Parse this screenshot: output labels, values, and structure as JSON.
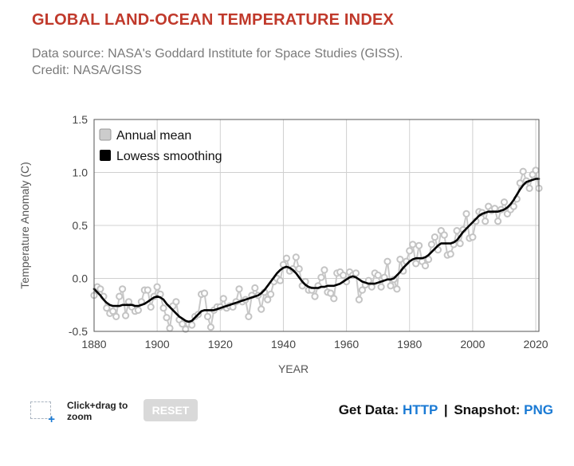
{
  "title": "GLOBAL LAND-OCEAN TEMPERATURE INDEX",
  "subtitle": "Data source: NASA's Goddard Institute for Space Studies (GISS). Credit: NASA/GISS",
  "controls": {
    "zoom_hint": "Click+drag to zoom",
    "reset_label": "RESET",
    "get_data_label": "Get Data:",
    "http_link": "HTTP",
    "separator": "|",
    "snapshot_label": "Snapshot:",
    "png_link": "PNG"
  },
  "colors": {
    "title": "#c0392b",
    "annual_mean": "#c8c8c8",
    "lowess": "#000000",
    "link": "#1a7ad4"
  },
  "chart_data": {
    "type": "line",
    "title": "GLOBAL LAND-OCEAN TEMPERATURE INDEX",
    "xlabel": "YEAR",
    "ylabel": "Temperature Anomaly (C)",
    "xlim": [
      1880,
      2021
    ],
    "ylim": [
      -0.5,
      1.5
    ],
    "xticks": [
      1880,
      1900,
      1920,
      1940,
      1960,
      1980,
      2000,
      2020
    ],
    "yticks": [
      -0.5,
      0.0,
      0.5,
      1.0,
      1.5
    ],
    "ytick_labels": [
      "-0.5",
      "0.0",
      "0.5",
      "1.0",
      "1.5"
    ],
    "grid": true,
    "legend": {
      "placement": "top-left",
      "entries": [
        "Annual mean",
        "Lowess smoothing"
      ]
    },
    "series": [
      {
        "name": "Annual mean",
        "style": "line-with-markers",
        "x_start": 1880,
        "values": [
          -0.16,
          -0.08,
          -0.1,
          -0.17,
          -0.28,
          -0.33,
          -0.31,
          -0.36,
          -0.17,
          -0.1,
          -0.35,
          -0.22,
          -0.27,
          -0.31,
          -0.3,
          -0.22,
          -0.11,
          -0.11,
          -0.27,
          -0.17,
          -0.08,
          -0.15,
          -0.28,
          -0.37,
          -0.47,
          -0.26,
          -0.22,
          -0.39,
          -0.43,
          -0.48,
          -0.43,
          -0.44,
          -0.36,
          -0.34,
          -0.15,
          -0.14,
          -0.36,
          -0.46,
          -0.3,
          -0.27,
          -0.27,
          -0.19,
          -0.28,
          -0.26,
          -0.27,
          -0.22,
          -0.1,
          -0.22,
          -0.2,
          -0.36,
          -0.16,
          -0.09,
          -0.16,
          -0.29,
          -0.13,
          -0.2,
          -0.15,
          -0.03,
          0.0,
          -0.02,
          0.13,
          0.19,
          0.07,
          0.09,
          0.2,
          0.09,
          -0.07,
          -0.03,
          -0.11,
          -0.11,
          -0.17,
          -0.07,
          0.01,
          0.08,
          -0.13,
          -0.14,
          -0.19,
          0.05,
          0.06,
          0.03,
          -0.03,
          0.06,
          0.03,
          0.05,
          -0.2,
          -0.11,
          -0.06,
          -0.02,
          -0.08,
          0.05,
          0.03,
          -0.08,
          0.01,
          0.16,
          -0.07,
          -0.01,
          -0.1,
          0.18,
          0.07,
          0.16,
          0.26,
          0.32,
          0.14,
          0.31,
          0.16,
          0.12,
          0.18,
          0.32,
          0.39,
          0.27,
          0.45,
          0.41,
          0.22,
          0.23,
          0.32,
          0.45,
          0.33,
          0.46,
          0.61,
          0.38,
          0.39,
          0.54,
          0.63,
          0.62,
          0.54,
          0.68,
          0.64,
          0.66,
          0.54,
          0.65,
          0.72,
          0.61,
          0.65,
          0.68,
          0.75,
          0.9,
          1.01,
          0.92,
          0.85,
          0.98,
          1.02,
          0.85
        ]
      },
      {
        "name": "Lowess smoothing",
        "style": "line",
        "x_start": 1880,
        "values": [
          -0.1,
          -0.13,
          -0.16,
          -0.2,
          -0.23,
          -0.25,
          -0.26,
          -0.26,
          -0.26,
          -0.25,
          -0.25,
          -0.25,
          -0.25,
          -0.26,
          -0.26,
          -0.25,
          -0.24,
          -0.22,
          -0.2,
          -0.18,
          -0.17,
          -0.18,
          -0.2,
          -0.24,
          -0.27,
          -0.3,
          -0.33,
          -0.36,
          -0.38,
          -0.4,
          -0.41,
          -0.4,
          -0.37,
          -0.34,
          -0.31,
          -0.3,
          -0.3,
          -0.3,
          -0.3,
          -0.29,
          -0.28,
          -0.27,
          -0.26,
          -0.25,
          -0.24,
          -0.23,
          -0.22,
          -0.21,
          -0.2,
          -0.19,
          -0.18,
          -0.17,
          -0.16,
          -0.14,
          -0.11,
          -0.07,
          -0.03,
          0.01,
          0.05,
          0.08,
          0.1,
          0.11,
          0.1,
          0.08,
          0.05,
          0.01,
          -0.03,
          -0.06,
          -0.08,
          -0.09,
          -0.09,
          -0.09,
          -0.08,
          -0.08,
          -0.07,
          -0.07,
          -0.07,
          -0.06,
          -0.05,
          -0.03,
          -0.01,
          0.01,
          0.02,
          0.01,
          -0.01,
          -0.03,
          -0.04,
          -0.05,
          -0.05,
          -0.05,
          -0.04,
          -0.03,
          -0.02,
          -0.01,
          -0.01,
          0.0,
          0.03,
          0.06,
          0.1,
          0.13,
          0.16,
          0.18,
          0.19,
          0.19,
          0.19,
          0.2,
          0.22,
          0.25,
          0.28,
          0.31,
          0.33,
          0.33,
          0.33,
          0.33,
          0.34,
          0.36,
          0.4,
          0.44,
          0.47,
          0.5,
          0.53,
          0.56,
          0.59,
          0.61,
          0.62,
          0.63,
          0.63,
          0.63,
          0.63,
          0.64,
          0.65,
          0.67,
          0.7,
          0.74,
          0.79,
          0.84,
          0.88,
          0.91,
          0.92,
          0.93,
          0.94,
          0.94
        ]
      }
    ]
  }
}
